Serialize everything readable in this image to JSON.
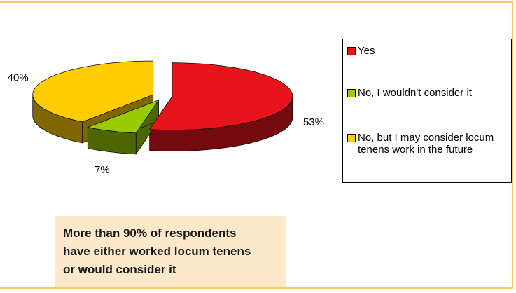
{
  "chart_data": {
    "type": "pie",
    "categories": [
      "Yes",
      "No, I wouldn't consider it",
      "No, but I may consider locum tenens work in the future"
    ],
    "values": [
      53,
      7,
      40
    ],
    "value_labels": [
      "53%",
      "7%",
      "40%"
    ],
    "colors": [
      "#e8141c",
      "#99cc00",
      "#ffcc00"
    ],
    "legend": "right",
    "annotation": [
      "More than 90% of respondents",
      "have either worked locum tenens",
      "or would consider it"
    ]
  }
}
